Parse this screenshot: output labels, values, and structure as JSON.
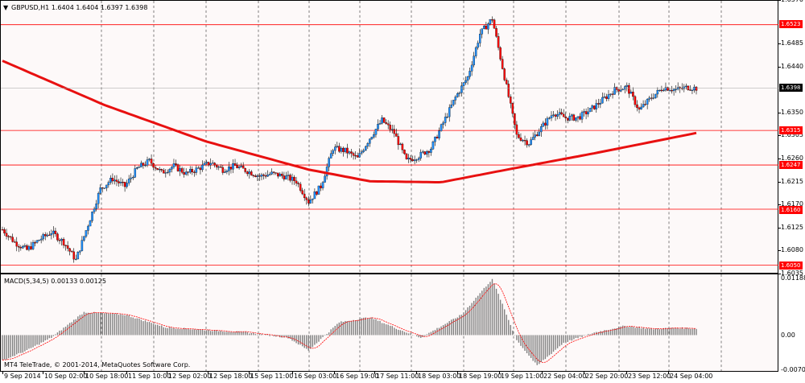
{
  "main_header": {
    "symbol_tf": "GBPUSD,H1",
    "ohlc": "1.6404 1.6404 1.6397 1.6398"
  },
  "macd_header": {
    "title": "MACD(5,34,5)",
    "values": "0.00133 0.00125"
  },
  "copyright": "MT4 TeleTrade, © 2001-2014, MetaQuotes Software Corp.",
  "price_ticks": [
    "1.6570",
    "1.6485",
    "1.6440",
    "1.6350",
    "1.6305",
    "1.6260",
    "1.6215",
    "1.6170",
    "1.6125",
    "1.6080",
    "1.6035"
  ],
  "level_tags": [
    "1.6523",
    "1.6315",
    "1.6247",
    "1.6160",
    "1.6050"
  ],
  "bid_tag": "1.6398",
  "macd_ticks": [
    "0.01188",
    "0.00",
    "-0.00701"
  ],
  "time_labels": [
    "9 Sep 2014",
    "10 Sep 02:00",
    "10 Sep 18:00",
    "11 Sep 10:00",
    "12 Sep 02:00",
    "12 Sep 18:00",
    "15 Sep 11:00",
    "16 Sep 03:00",
    "16 Sep 19:00",
    "17 Sep 11:00",
    "18 Sep 03:00",
    "18 Sep 19:00",
    "19 Sep 11:00",
    "22 Sep 04:00",
    "22 Sep 20:00",
    "23 Sep 12:00",
    "24 Sep 04:00"
  ],
  "colors": {
    "bull": "#1e90ff",
    "bear": "#ff0000",
    "wick": "#000000",
    "ma": "#e81010",
    "level": "#ff0000",
    "macd_hist": "#808080",
    "macd_signal": "#ff0000",
    "background": "#fdf9f9"
  },
  "chart_data": {
    "type": "candlestick",
    "symbol": "GBPUSD",
    "timeframe": "H1",
    "ylim": [
      1.6035,
      1.657
    ],
    "horizontal_levels": [
      1.6523,
      1.6315,
      1.6247,
      1.616,
      1.605
    ],
    "current_price": 1.6398,
    "grid": true,
    "close_path": [
      {
        "t": 0,
        "p": 1.612
      },
      {
        "t": 6,
        "p": 1.6095
      },
      {
        "t": 12,
        "p": 1.608
      },
      {
        "t": 18,
        "p": 1.61
      },
      {
        "t": 24,
        "p": 1.6115
      },
      {
        "t": 30,
        "p": 1.6095
      },
      {
        "t": 36,
        "p": 1.606
      },
      {
        "t": 42,
        "p": 1.613
      },
      {
        "t": 48,
        "p": 1.62
      },
      {
        "t": 54,
        "p": 1.622
      },
      {
        "t": 60,
        "p": 1.6205
      },
      {
        "t": 66,
        "p": 1.624
      },
      {
        "t": 72,
        "p": 1.6255
      },
      {
        "t": 78,
        "p": 1.6232
      },
      {
        "t": 84,
        "p": 1.6245
      },
      {
        "t": 90,
        "p": 1.623
      },
      {
        "t": 96,
        "p": 1.624
      },
      {
        "t": 102,
        "p": 1.6252
      },
      {
        "t": 108,
        "p": 1.6238
      },
      {
        "t": 114,
        "p": 1.6245
      },
      {
        "t": 120,
        "p": 1.6235
      },
      {
        "t": 126,
        "p": 1.6225
      },
      {
        "t": 132,
        "p": 1.623
      },
      {
        "t": 138,
        "p": 1.6225
      },
      {
        "t": 144,
        "p": 1.6215
      },
      {
        "t": 150,
        "p": 1.6175
      },
      {
        "t": 156,
        "p": 1.6205
      },
      {
        "t": 162,
        "p": 1.628
      },
      {
        "t": 168,
        "p": 1.6275
      },
      {
        "t": 174,
        "p": 1.626
      },
      {
        "t": 180,
        "p": 1.63
      },
      {
        "t": 186,
        "p": 1.6335
      },
      {
        "t": 192,
        "p": 1.631
      },
      {
        "t": 198,
        "p": 1.6255
      },
      {
        "t": 204,
        "p": 1.6265
      },
      {
        "t": 210,
        "p": 1.628
      },
      {
        "t": 216,
        "p": 1.633
      },
      {
        "t": 222,
        "p": 1.638
      },
      {
        "t": 228,
        "p": 1.642
      },
      {
        "t": 234,
        "p": 1.6505
      },
      {
        "t": 240,
        "p": 1.6535
      },
      {
        "t": 246,
        "p": 1.642
      },
      {
        "t": 252,
        "p": 1.6305
      },
      {
        "t": 258,
        "p": 1.629
      },
      {
        "t": 264,
        "p": 1.632
      },
      {
        "t": 270,
        "p": 1.635
      },
      {
        "t": 276,
        "p": 1.634
      },
      {
        "t": 282,
        "p": 1.634
      },
      {
        "t": 288,
        "p": 1.6355
      },
      {
        "t": 294,
        "p": 1.6375
      },
      {
        "t": 300,
        "p": 1.6395
      },
      {
        "t": 306,
        "p": 1.64
      },
      {
        "t": 312,
        "p": 1.6355
      },
      {
        "t": 318,
        "p": 1.638
      },
      {
        "t": 324,
        "p": 1.64
      },
      {
        "t": 330,
        "p": 1.6395
      },
      {
        "t": 336,
        "p": 1.64
      },
      {
        "t": 340,
        "p": 1.6398
      }
    ],
    "moving_average": [
      {
        "t": 0,
        "p": 1.6452
      },
      {
        "t": 50,
        "p": 1.6365
      },
      {
        "t": 100,
        "p": 1.6293
      },
      {
        "t": 150,
        "p": 1.6238
      },
      {
        "t": 180,
        "p": 1.6215
      },
      {
        "t": 215,
        "p": 1.6213
      },
      {
        "t": 250,
        "p": 1.624
      },
      {
        "t": 290,
        "p": 1.627
      },
      {
        "t": 340,
        "p": 1.631
      }
    ],
    "macd": {
      "ylim": [
        -0.00701,
        0.01188
      ],
      "zero": 0,
      "histogram_path": [
        {
          "t": 0,
          "v": -0.005
        },
        {
          "t": 12,
          "v": -0.003
        },
        {
          "t": 24,
          "v": -0.0005
        },
        {
          "t": 40,
          "v": 0.0045
        },
        {
          "t": 60,
          "v": 0.004
        },
        {
          "t": 80,
          "v": 0.0015
        },
        {
          "t": 100,
          "v": 0.001
        },
        {
          "t": 120,
          "v": 0.0005
        },
        {
          "t": 140,
          "v": -0.0005
        },
        {
          "t": 150,
          "v": -0.003
        },
        {
          "t": 165,
          "v": 0.0025
        },
        {
          "t": 180,
          "v": 0.0035
        },
        {
          "t": 195,
          "v": 0.001
        },
        {
          "t": 205,
          "v": -0.0005
        },
        {
          "t": 225,
          "v": 0.004
        },
        {
          "t": 240,
          "v": 0.011
        },
        {
          "t": 252,
          "v": -0.001
        },
        {
          "t": 262,
          "v": -0.006
        },
        {
          "t": 275,
          "v": -0.0015
        },
        {
          "t": 290,
          "v": 0.0005
        },
        {
          "t": 305,
          "v": 0.0018
        },
        {
          "t": 318,
          "v": 0.0012
        },
        {
          "t": 330,
          "v": 0.0014
        },
        {
          "t": 340,
          "v": 0.0013
        }
      ],
      "signal_lag": 3
    }
  }
}
